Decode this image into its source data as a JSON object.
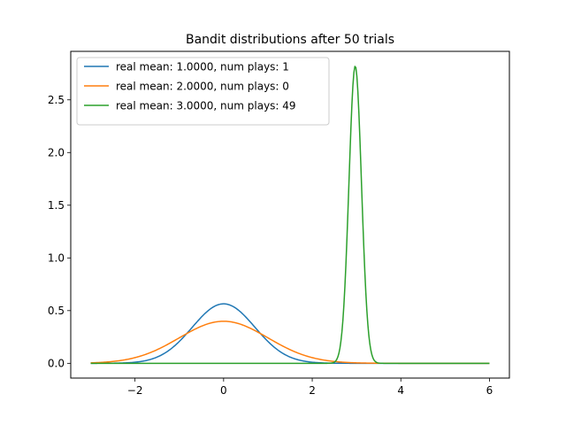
{
  "chart_data": {
    "type": "line",
    "title": "Bandit distributions after 50 trials",
    "xlabel": "",
    "ylabel": "",
    "xlim": [
      -3.45,
      6.45
    ],
    "ylim": [
      -0.14,
      2.96
    ],
    "xticks": [
      -2,
      0,
      2,
      4,
      6
    ],
    "xtick_labels": [
      "−2",
      "0",
      "2",
      "4",
      "6"
    ],
    "yticks": [
      0.0,
      0.5,
      1.0,
      1.5,
      2.0,
      2.5
    ],
    "ytick_labels": [
      "0.0",
      "0.5",
      "1.0",
      "1.5",
      "2.0",
      "2.5"
    ],
    "grid": false,
    "legend_position": "top-left",
    "x_domain": [
      -3,
      6
    ],
    "series": [
      {
        "name": "real mean: 1.0000, num plays: 1",
        "color": "#1f77b4",
        "distribution": "normal",
        "mean": 0.0,
        "std": 0.707
      },
      {
        "name": "real mean: 2.0000, num plays: 0",
        "color": "#ff7f0e",
        "distribution": "normal",
        "mean": 0.0,
        "std": 1.0
      },
      {
        "name": "real mean: 3.0000, num plays: 49",
        "color": "#2ca02c",
        "distribution": "normal",
        "mean": 2.97,
        "std": 0.1414
      }
    ]
  }
}
